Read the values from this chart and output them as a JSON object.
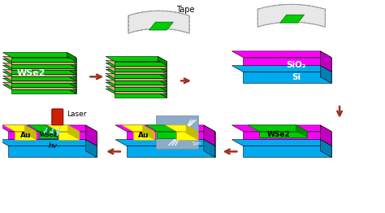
{
  "bg_color": "#ffffff",
  "arrow_color": "#A03020",
  "sio2_color": "#FF00FF",
  "si_color": "#00AAEE",
  "wse2_color": "#00CC00",
  "au_color": "#FFFF00",
  "layer_spacer_color": "#D4AA80",
  "tape_fill": "#E8E8E8",
  "tape_edge": "#999999",
  "laser_color": "#CC2200",
  "photon_color": "#88DDFF",
  "photo_bg": "#8BACC8",
  "labels": {
    "wse2": "WSe2",
    "sio2": "SiO₂",
    "si": "Si",
    "au": "Au",
    "tape": "Tape",
    "laser": "Laser",
    "hv": "hv"
  }
}
